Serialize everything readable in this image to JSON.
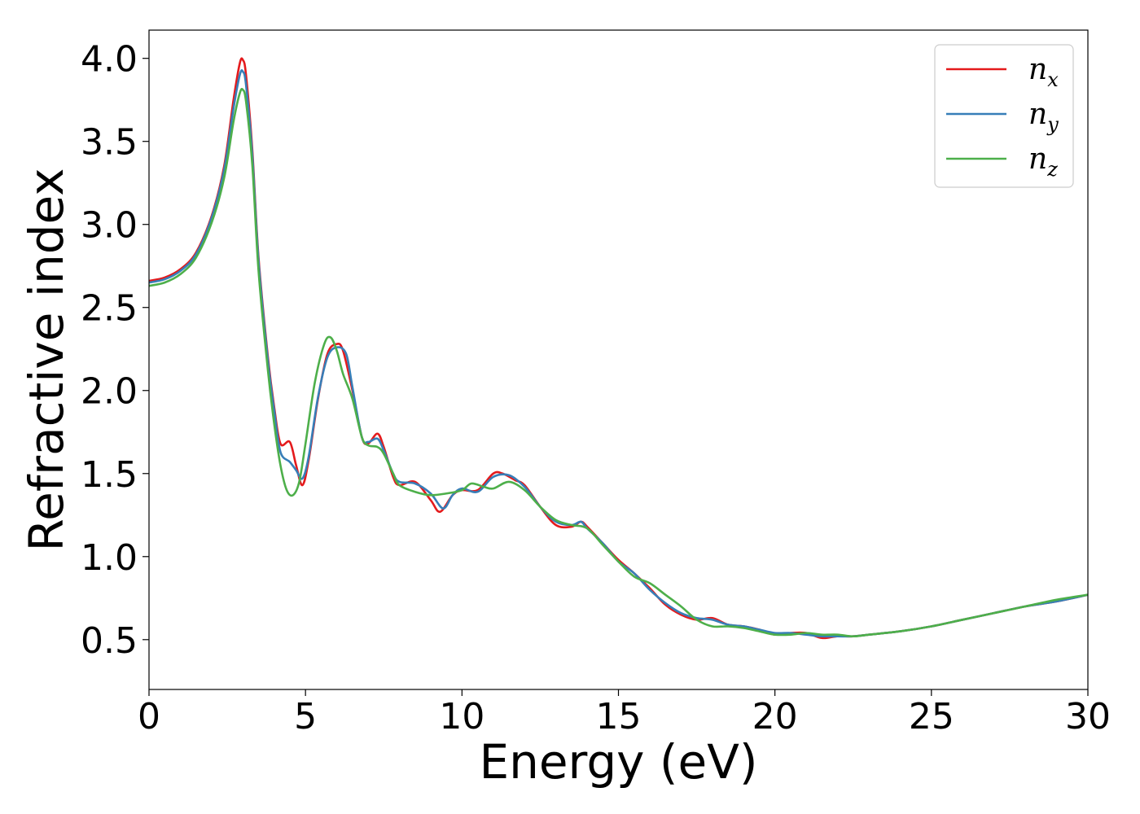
{
  "chart_data": {
    "type": "line",
    "title": "",
    "xlabel": "Energy (eV)",
    "ylabel": "Refractive index",
    "xlim": [
      0,
      30
    ],
    "ylim": [
      0.2,
      4.17
    ],
    "xticks": [
      0,
      5,
      10,
      15,
      20,
      25,
      30
    ],
    "yticks": [
      0.5,
      1.0,
      1.5,
      2.0,
      2.5,
      3.0,
      3.5,
      4.0
    ],
    "xtick_labels": [
      "0",
      "5",
      "10",
      "15",
      "20",
      "25",
      "30"
    ],
    "ytick_labels": [
      "0.5",
      "1.0",
      "1.5",
      "2.0",
      "2.5",
      "3.0",
      "3.5",
      "4.0"
    ],
    "grid": false,
    "legend": {
      "placement": "top-right",
      "entries": [
        {
          "base": "n",
          "sub": "x"
        },
        {
          "base": "n",
          "sub": "y"
        },
        {
          "base": "n",
          "sub": "z"
        }
      ]
    },
    "colors": [
      "#e41a1c",
      "#377eb8",
      "#4daf4a"
    ],
    "series": [
      {
        "name": "n_x",
        "x": [
          0,
          0.5,
          1.0,
          1.5,
          2.0,
          2.4,
          2.7,
          2.9,
          3.0,
          3.1,
          3.3,
          3.5,
          3.8,
          4.0,
          4.2,
          4.5,
          4.7,
          4.9,
          5.1,
          5.4,
          5.7,
          6.0,
          6.2,
          6.5,
          6.8,
          7.0,
          7.3,
          7.5,
          7.8,
          8.0,
          8.5,
          9.0,
          9.3,
          9.7,
          10.0,
          10.5,
          11.0,
          11.3,
          11.7,
          12.0,
          12.5,
          13.0,
          13.5,
          13.8,
          14.0,
          14.5,
          15.0,
          15.5,
          16.0,
          16.5,
          17.0,
          17.5,
          18.0,
          18.5,
          19.0,
          19.5,
          20.0,
          20.5,
          21.0,
          21.5,
          22.0,
          22.5,
          23.0,
          24.0,
          25.0,
          26.0,
          27.0,
          28.0,
          29.0,
          30.0
        ],
        "y": [
          2.66,
          2.68,
          2.73,
          2.83,
          3.05,
          3.35,
          3.75,
          3.97,
          3.99,
          3.9,
          3.45,
          2.8,
          2.2,
          1.9,
          1.68,
          1.69,
          1.55,
          1.43,
          1.58,
          1.95,
          2.22,
          2.28,
          2.24,
          2.0,
          1.72,
          1.68,
          1.74,
          1.66,
          1.48,
          1.43,
          1.45,
          1.34,
          1.27,
          1.37,
          1.4,
          1.4,
          1.5,
          1.5,
          1.46,
          1.43,
          1.3,
          1.19,
          1.18,
          1.21,
          1.18,
          1.08,
          0.98,
          0.9,
          0.81,
          0.71,
          0.65,
          0.62,
          0.63,
          0.59,
          0.58,
          0.56,
          0.53,
          0.54,
          0.54,
          0.51,
          0.52,
          0.52,
          0.53,
          0.55,
          0.58,
          0.62,
          0.66,
          0.7,
          0.73,
          0.77
        ]
      },
      {
        "name": "n_y",
        "x": [
          0,
          0.5,
          1.0,
          1.5,
          2.0,
          2.4,
          2.7,
          2.9,
          3.0,
          3.1,
          3.3,
          3.5,
          3.8,
          4.0,
          4.2,
          4.5,
          4.7,
          4.9,
          5.1,
          5.4,
          5.7,
          6.0,
          6.3,
          6.5,
          6.8,
          7.0,
          7.3,
          7.5,
          7.8,
          8.0,
          8.5,
          9.0,
          9.4,
          9.7,
          10.0,
          10.5,
          11.0,
          11.5,
          12.0,
          12.5,
          13.0,
          13.5,
          13.8,
          14.0,
          14.5,
          15.0,
          15.5,
          16.0,
          16.5,
          17.0,
          17.5,
          18.0,
          18.5,
          19.0,
          19.5,
          20.0,
          20.5,
          21.0,
          21.5,
          22.0,
          22.5,
          23.0,
          24.0,
          25.0,
          26.0,
          27.0,
          28.0,
          29.0,
          30.0
        ],
        "y": [
          2.65,
          2.67,
          2.72,
          2.82,
          3.04,
          3.33,
          3.7,
          3.9,
          3.92,
          3.84,
          3.42,
          2.78,
          2.18,
          1.88,
          1.63,
          1.57,
          1.52,
          1.47,
          1.6,
          1.96,
          2.2,
          2.26,
          2.22,
          2.02,
          1.72,
          1.69,
          1.71,
          1.64,
          1.5,
          1.45,
          1.44,
          1.38,
          1.29,
          1.37,
          1.41,
          1.39,
          1.48,
          1.49,
          1.42,
          1.3,
          1.21,
          1.19,
          1.21,
          1.17,
          1.08,
          0.97,
          0.9,
          0.8,
          0.72,
          0.66,
          0.63,
          0.62,
          0.59,
          0.58,
          0.56,
          0.54,
          0.54,
          0.53,
          0.52,
          0.52,
          0.52,
          0.53,
          0.55,
          0.58,
          0.62,
          0.66,
          0.7,
          0.73,
          0.77
        ]
      },
      {
        "name": "n_z",
        "x": [
          0,
          0.5,
          1.0,
          1.5,
          2.0,
          2.4,
          2.7,
          2.9,
          3.0,
          3.1,
          3.3,
          3.5,
          3.8,
          4.0,
          4.2,
          4.4,
          4.6,
          4.8,
          5.0,
          5.3,
          5.6,
          5.8,
          6.0,
          6.2,
          6.5,
          6.8,
          7.0,
          7.3,
          7.5,
          7.8,
          8.0,
          8.5,
          9.0,
          9.5,
          10.0,
          10.3,
          10.7,
          11.0,
          11.5,
          12.0,
          12.5,
          13.0,
          13.5,
          14.0,
          14.5,
          15.0,
          15.5,
          16.0,
          16.5,
          17.0,
          17.5,
          18.0,
          18.5,
          19.0,
          19.5,
          20.0,
          20.5,
          21.0,
          21.5,
          22.0,
          22.5,
          23.0,
          24.0,
          25.0,
          26.0,
          27.0,
          28.0,
          29.0,
          30.0
        ],
        "y": [
          2.63,
          2.65,
          2.7,
          2.8,
          3.01,
          3.28,
          3.62,
          3.79,
          3.81,
          3.74,
          3.36,
          2.72,
          2.12,
          1.8,
          1.55,
          1.4,
          1.37,
          1.45,
          1.68,
          2.05,
          2.28,
          2.32,
          2.24,
          2.1,
          1.95,
          1.72,
          1.67,
          1.66,
          1.62,
          1.5,
          1.43,
          1.39,
          1.37,
          1.38,
          1.4,
          1.44,
          1.42,
          1.41,
          1.45,
          1.4,
          1.3,
          1.22,
          1.19,
          1.17,
          1.07,
          0.97,
          0.88,
          0.84,
          0.77,
          0.7,
          0.62,
          0.58,
          0.58,
          0.57,
          0.55,
          0.53,
          0.53,
          0.54,
          0.53,
          0.53,
          0.52,
          0.53,
          0.55,
          0.58,
          0.62,
          0.66,
          0.7,
          0.74,
          0.77
        ]
      }
    ]
  }
}
